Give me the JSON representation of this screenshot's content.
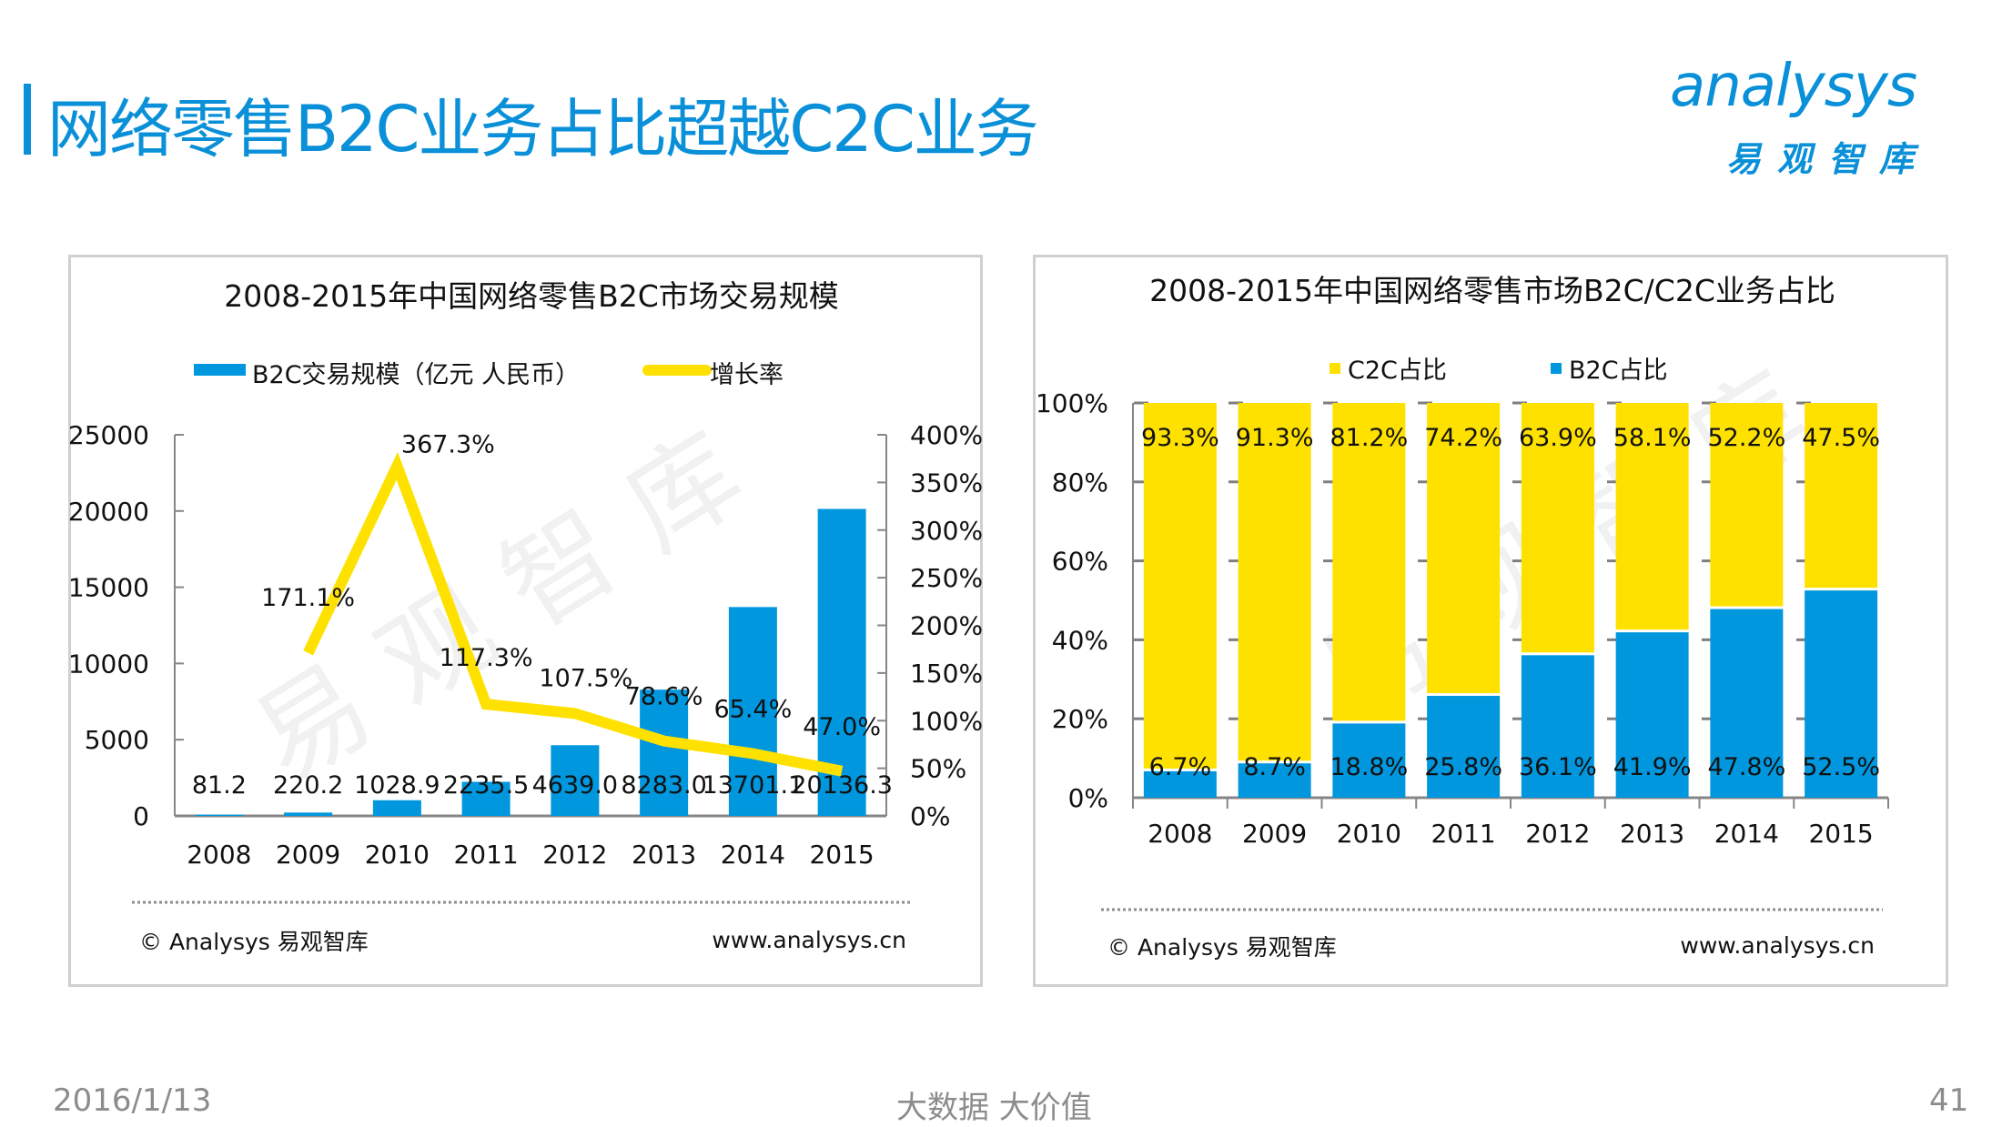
{
  "page": {
    "title": "网络零售B2C业务占比超越C2C业务",
    "logo_word": "analysys",
    "logo_cn": "易观智库",
    "footer_date": "2016/1/13",
    "footer_slogan": "大数据  大价值",
    "page_number": "41"
  },
  "colors": {
    "accent": "#0a90d8",
    "bar_blue": "#0097de",
    "line_yellow": "#ffe100",
    "axis": "#868686"
  },
  "chart_data": [
    {
      "type": "bar+line",
      "title": "2008-2015年中国网络零售B2C市场交易规模",
      "categories": [
        "2008",
        "2009",
        "2010",
        "2011",
        "2012",
        "2013",
        "2014",
        "2015"
      ],
      "series": [
        {
          "name": "B2C交易规模（亿元 人民币）",
          "type": "bar",
          "axis": "left",
          "values": [
            81.2,
            220.2,
            1028.9,
            2235.5,
            4639.0,
            8283.0,
            13701.1,
            20136.3
          ],
          "labels": [
            "81.2",
            "220.2",
            "1028.9",
            "2235.5",
            "4639.0",
            "8283.0",
            "13701.1",
            "20136.3"
          ]
        },
        {
          "name": "增长率",
          "type": "line",
          "axis": "right",
          "values": [
            null,
            171.1,
            367.3,
            117.3,
            107.5,
            78.6,
            65.4,
            47.0
          ],
          "labels": [
            "",
            "171.1%",
            "367.3%",
            "117.3%",
            "107.5%",
            "78.6%",
            "65.4%",
            "47.0%"
          ]
        }
      ],
      "y_left": {
        "range": [
          0,
          25000
        ],
        "ticks": [
          "0",
          "5000",
          "10000",
          "15000",
          "20000",
          "25000"
        ]
      },
      "y_right": {
        "range": [
          0,
          400
        ],
        "ticks": [
          "0%",
          "50%",
          "100%",
          "150%",
          "200%",
          "250%",
          "300%",
          "350%",
          "400%"
        ]
      },
      "legend": "top",
      "grid": false,
      "watermark": "易观智库",
      "source": "© Analysys 易观智库",
      "url": "www.analysys.cn"
    },
    {
      "type": "stacked-bar-100",
      "title": "2008-2015年中国网络零售市场B2C/C2C业务占比",
      "categories": [
        "2008",
        "2009",
        "2010",
        "2011",
        "2012",
        "2013",
        "2014",
        "2015"
      ],
      "series": [
        {
          "name": "B2C占比",
          "values": [
            6.7,
            8.7,
            18.8,
            25.8,
            36.1,
            41.9,
            47.8,
            52.5
          ]
        },
        {
          "name": "C2C占比",
          "values": [
            93.3,
            91.3,
            81.2,
            74.2,
            63.9,
            58.1,
            52.2,
            47.5
          ]
        }
      ],
      "legend_order": [
        "C2C占比",
        "B2C占比"
      ],
      "y": {
        "range": [
          0,
          100
        ],
        "ticks": [
          "0%",
          "20%",
          "40%",
          "60%",
          "80%",
          "100%"
        ]
      },
      "legend": "top",
      "grid": false,
      "watermark": "易观智库",
      "source": "© Analysys 易观智库",
      "url": "www.analysys.cn"
    }
  ]
}
